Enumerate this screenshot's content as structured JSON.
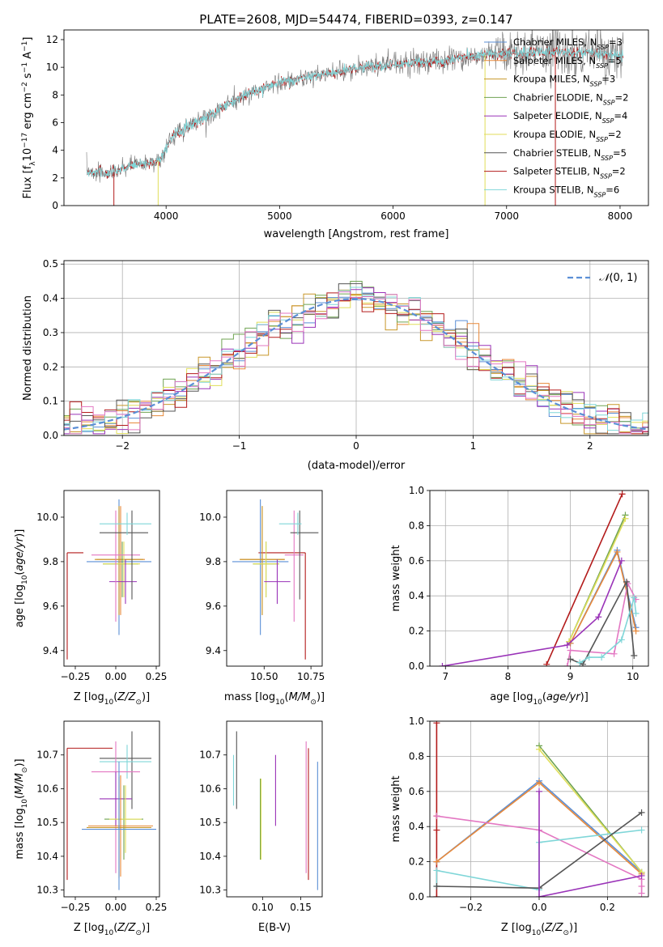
{
  "title": "PLATE=2608, MJD=54474, FIBERID=0393, z=0.147",
  "colors": {
    "chabrier_miles": "#5b8fd6",
    "salpeter_miles": "#e8893a",
    "kroupa_miles": "#c8972a",
    "chabrier_elodie": "#6fa352",
    "salpeter_elodie": "#9a33b8",
    "kroupa_elodie": "#e0de5a",
    "chabrier_stelib": "#555555",
    "salpeter_stelib": "#b31b1b",
    "kroupa_stelib": "#7fd6d8",
    "pink": "#e377c2",
    "normal": "#5b8fd6"
  },
  "chart_data": [
    {
      "id": "spectrum",
      "type": "line",
      "xlabel": "wavelength [Angstrom, rest frame]",
      "ylabel": "Flux [f_λ 10^-17 erg cm^-2 s^-1 A^-1]",
      "xlim": [
        3100,
        8250
      ],
      "ylim": [
        0,
        12.7
      ],
      "xticks": [
        4000,
        5000,
        6000,
        7000,
        8000
      ],
      "yticks": [
        0,
        2,
        4,
        6,
        8,
        10,
        12
      ],
      "legend_position": "top-right",
      "series": [
        {
          "name": "Chabrier MILES, N_SSP=3",
          "key": "chabrier_miles"
        },
        {
          "name": "Salpeter MILES, N_SSP=5",
          "key": "salpeter_miles"
        },
        {
          "name": "Kroupa MILES, N_SSP=3",
          "key": "kroupa_miles"
        },
        {
          "name": "Chabrier ELODIE, N_SSP=2",
          "key": "chabrier_elodie"
        },
        {
          "name": "Salpeter ELODIE, N_SSP=4",
          "key": "salpeter_elodie"
        },
        {
          "name": "Kroupa ELODIE, N_SSP=2",
          "key": "kroupa_elodie"
        },
        {
          "name": "Chabrier STELIB, N_SSP=5",
          "key": "chabrier_stelib"
        },
        {
          "name": "Salpeter STELIB, N_SSP=2",
          "key": "salpeter_stelib"
        },
        {
          "name": "Kroupa STELIB, N_SSP=6",
          "key": "kroupa_stelib"
        }
      ],
      "continuum": [
        [
          3300,
          2.5
        ],
        [
          3500,
          2.3
        ],
        [
          3700,
          2.9
        ],
        [
          3850,
          3.1
        ],
        [
          3950,
          3.3
        ],
        [
          4050,
          5.0
        ],
        [
          4200,
          5.8
        ],
        [
          4400,
          6.6
        ],
        [
          4600,
          7.6
        ],
        [
          4800,
          8.3
        ],
        [
          5000,
          8.9
        ],
        [
          5200,
          9.2
        ],
        [
          5400,
          9.5
        ],
        [
          5600,
          9.8
        ],
        [
          5800,
          10.1
        ],
        [
          6000,
          10.2
        ],
        [
          6200,
          10.3
        ],
        [
          6400,
          10.4
        ],
        [
          6600,
          10.7
        ],
        [
          6800,
          10.9
        ],
        [
          7000,
          11.0
        ],
        [
          7200,
          11.0
        ],
        [
          7400,
          11.1
        ],
        [
          7600,
          11.1
        ],
        [
          7800,
          11.0
        ],
        [
          8000,
          10.8
        ]
      ]
    },
    {
      "id": "residuals",
      "type": "bar",
      "xlabel": "(data-model)/error",
      "ylabel": "Normed distribution",
      "xlim": [
        -2.5,
        2.5
      ],
      "ylim": [
        0,
        0.51
      ],
      "xticks": [
        -2,
        -1,
        0,
        1,
        2
      ],
      "yticks": [
        0.0,
        0.1,
        0.2,
        0.3,
        0.4,
        0.5
      ],
      "legend_position": "top-right",
      "legend_label": "N(0,1)",
      "bin_width": 0.1,
      "grid": true
    },
    {
      "id": "age_vs_Z",
      "type": "scatter",
      "xlabel": "Z [log10(Z/Z⊙)]",
      "ylabel": "age [log10(age/yr)]",
      "xlim": [
        -0.32,
        0.27
      ],
      "ylim": [
        9.33,
        10.12
      ],
      "xticks": [
        -0.25,
        0.0,
        0.25
      ],
      "xticklabels": [
        "−0.25",
        "0.00",
        "0.25"
      ],
      "yticks": [
        9.4,
        9.6,
        9.8,
        10.0
      ],
      "points": [
        {
          "key": "salpeter_stelib",
          "x": -0.3,
          "y": 9.84,
          "xerr": [
            0.0,
            0.1
          ],
          "yerr": [
            0.48,
            0.0
          ]
        },
        {
          "key": "chabrier_miles",
          "x": 0.02,
          "y": 9.8,
          "xerr": [
            0.2,
            0.2
          ],
          "yerr": [
            0.33,
            0.28
          ]
        },
        {
          "key": "salpeter_miles",
          "x": 0.03,
          "y": 9.81,
          "xerr": [
            0.15,
            0.15
          ],
          "yerr": [
            0.25,
            0.24
          ]
        },
        {
          "key": "kroupa_miles",
          "x": 0.02,
          "y": 9.81,
          "xerr": [
            0.15,
            0.15
          ],
          "yerr": [
            0.25,
            0.24
          ]
        },
        {
          "key": "chabrier_elodie",
          "x": 0.04,
          "y": 9.79,
          "xerr": [
            0.12,
            0.1
          ],
          "yerr": [
            0.15,
            0.1
          ]
        },
        {
          "key": "kroupa_elodie",
          "x": 0.05,
          "y": 9.79,
          "xerr": [
            0.13,
            0.1
          ],
          "yerr": [
            0.15,
            0.1
          ]
        },
        {
          "key": "salpeter_elodie",
          "x": 0.06,
          "y": 9.71,
          "xerr": [
            0.1,
            0.07
          ],
          "yerr": [
            0.1,
            0.1
          ]
        },
        {
          "key": "pink",
          "x": 0.0,
          "y": 9.83,
          "xerr": [
            0.15,
            0.15
          ],
          "yerr": [
            0.3,
            0.2
          ]
        },
        {
          "key": "chabrier_stelib",
          "x": 0.1,
          "y": 9.93,
          "xerr": [
            0.2,
            0.1
          ],
          "yerr": [
            0.3,
            0.1
          ]
        },
        {
          "key": "kroupa_stelib",
          "x": 0.07,
          "y": 9.97,
          "xerr": [
            0.17,
            0.15
          ],
          "yerr": [
            0.05,
            0.05
          ]
        }
      ]
    },
    {
      "id": "age_vs_mass",
      "type": "scatter",
      "xlabel": "mass [log10(M/M⊙)]",
      "xlim": [
        10.3,
        10.81
      ],
      "ylim": [
        9.33,
        10.12
      ],
      "xticks": [
        10.5,
        10.75
      ],
      "xticklabels": [
        "10.50",
        "10.75"
      ],
      "yticks": [
        9.4,
        9.6,
        9.8,
        10.0
      ],
      "points": [
        {
          "key": "salpeter_stelib",
          "x": 10.72,
          "y": 9.84,
          "xerr": [
            0.25,
            0.0
          ],
          "yerr": [
            0.48,
            0.0
          ]
        },
        {
          "key": "chabrier_miles",
          "x": 10.48,
          "y": 9.8,
          "xerr": [
            0.15,
            0.15
          ],
          "yerr": [
            0.33,
            0.28
          ]
        },
        {
          "key": "salpeter_miles",
          "x": 10.49,
          "y": 9.81,
          "xerr": [
            0.12,
            0.12
          ],
          "yerr": [
            0.25,
            0.24
          ]
        },
        {
          "key": "kroupa_miles",
          "x": 10.49,
          "y": 9.81,
          "xerr": [
            0.12,
            0.12
          ],
          "yerr": [
            0.25,
            0.24
          ]
        },
        {
          "key": "chabrier_elodie",
          "x": 10.51,
          "y": 9.79,
          "xerr": [
            0.07,
            0.07
          ],
          "yerr": [
            0.15,
            0.1
          ]
        },
        {
          "key": "kroupa_elodie",
          "x": 10.51,
          "y": 9.79,
          "xerr": [
            0.07,
            0.07
          ],
          "yerr": [
            0.15,
            0.1
          ]
        },
        {
          "key": "salpeter_elodie",
          "x": 10.57,
          "y": 9.71,
          "xerr": [
            0.07,
            0.07
          ],
          "yerr": [
            0.1,
            0.1
          ]
        },
        {
          "key": "pink",
          "x": 10.66,
          "y": 9.83,
          "xerr": [
            0.05,
            0.05
          ],
          "yerr": [
            0.3,
            0.2
          ]
        },
        {
          "key": "chabrier_stelib",
          "x": 10.69,
          "y": 9.93,
          "xerr": [
            0.05,
            0.1
          ],
          "yerr": [
            0.3,
            0.1
          ]
        },
        {
          "key": "kroupa_stelib",
          "x": 10.68,
          "y": 9.97,
          "xerr": [
            0.1,
            0.02
          ],
          "yerr": [
            0.05,
            0.05
          ]
        }
      ]
    },
    {
      "id": "weight_vs_age",
      "type": "line",
      "xlabel": "age [log10(age/yr)]",
      "ylabel": "mass weight",
      "xlim": [
        6.75,
        10.25
      ],
      "ylim": [
        0,
        1.0
      ],
      "xticks": [
        7,
        8,
        9,
        10
      ],
      "yticks": [
        0.0,
        0.2,
        0.4,
        0.6,
        0.8,
        1.0
      ],
      "grid": true,
      "series": [
        {
          "key": "salpeter_stelib",
          "x": [
            8.62,
            9.83
          ],
          "y": [
            0.01,
            0.98
          ]
        },
        {
          "key": "chabrier_elodie",
          "x": [
            8.98,
            9.88
          ],
          "y": [
            0.14,
            0.86
          ]
        },
        {
          "key": "kroupa_elodie",
          "x": [
            8.98,
            9.88
          ],
          "y": [
            0.14,
            0.84
          ]
        },
        {
          "key": "chabrier_miles",
          "x": [
            9.0,
            9.75,
            10.05
          ],
          "y": [
            0.13,
            0.66,
            0.22
          ]
        },
        {
          "key": "salpeter_miles",
          "x": [
            9.0,
            9.75,
            10.05
          ],
          "y": [
            0.13,
            0.65,
            0.2
          ]
        },
        {
          "key": "salpeter_elodie",
          "x": [
            6.95,
            8.95,
            9.45,
            9.82
          ],
          "y": [
            0.0,
            0.12,
            0.28,
            0.6
          ]
        },
        {
          "key": "pink",
          "x": [
            8.95,
            9.0,
            9.7,
            9.92,
            10.05
          ],
          "y": [
            0.0,
            0.09,
            0.07,
            0.47,
            0.38
          ]
        },
        {
          "key": "chabrier_stelib",
          "x": [
            9.0,
            9.2,
            9.9,
            10.02
          ],
          "y": [
            0.04,
            0.01,
            0.48,
            0.06
          ]
        },
        {
          "key": "kroupa_stelib",
          "x": [
            9.15,
            9.3,
            9.5,
            9.82,
            10.02,
            10.05
          ],
          "y": [
            0.02,
            0.05,
            0.05,
            0.15,
            0.39,
            0.3
          ]
        }
      ]
    },
    {
      "id": "mass_vs_Z",
      "type": "scatter",
      "xlabel": "Z [log10(Z/Z⊙)]",
      "ylabel": "mass [log10(M/M⊙)]",
      "xlim": [
        -0.32,
        0.27
      ],
      "ylim": [
        10.28,
        10.8
      ],
      "xticks": [
        -0.25,
        0.0,
        0.25
      ],
      "xticklabels": [
        "−0.25",
        "0.00",
        "0.25"
      ],
      "yticks": [
        10.3,
        10.4,
        10.5,
        10.6,
        10.7
      ],
      "points": [
        {
          "key": "salpeter_stelib",
          "x": -0.3,
          "y": 10.72,
          "xerr": [
            0.0,
            0.28
          ],
          "yerr": [
            0.39,
            0.0
          ]
        },
        {
          "key": "chabrier_stelib",
          "x": 0.1,
          "y": 10.69,
          "xerr": [
            0.2,
            0.12
          ],
          "yerr": [
            0.15,
            0.08
          ]
        },
        {
          "key": "kroupa_stelib",
          "x": 0.07,
          "y": 10.68,
          "xerr": [
            0.17,
            0.15
          ],
          "yerr": [
            0.05,
            0.05
          ]
        },
        {
          "key": "pink",
          "x": 0.0,
          "y": 10.65,
          "xerr": [
            0.15,
            0.15
          ],
          "yerr": [
            0.3,
            0.09
          ]
        },
        {
          "key": "salpeter_elodie",
          "x": 0.0,
          "y": 10.57,
          "xerr": [
            0.1,
            0.1
          ],
          "yerr": [
            0.08,
            0.08
          ]
        },
        {
          "key": "chabrier_elodie",
          "x": 0.05,
          "y": 10.51,
          "xerr": [
            0.12,
            0.12
          ],
          "yerr": [
            0.12,
            0.1
          ]
        },
        {
          "key": "kroupa_elodie",
          "x": 0.06,
          "y": 10.51,
          "xerr": [
            0.1,
            0.1
          ],
          "yerr": [
            0.1,
            0.1
          ]
        },
        {
          "key": "salpeter_miles",
          "x": 0.03,
          "y": 10.49,
          "xerr": [
            0.2,
            0.2
          ],
          "yerr": [
            0.15,
            0.15
          ]
        },
        {
          "key": "kroupa_miles",
          "x": 0.02,
          "y": 10.485,
          "xerr": [
            0.2,
            0.2
          ],
          "yerr": [
            0.15,
            0.15
          ]
        },
        {
          "key": "chabrier_miles",
          "x": 0.02,
          "y": 10.48,
          "xerr": [
            0.23,
            0.23
          ],
          "yerr": [
            0.18,
            0.2
          ]
        }
      ]
    },
    {
      "id": "mass_vs_ebv",
      "type": "scatter",
      "xlabel": "E(B-V)",
      "xlim": [
        0.053,
        0.178
      ],
      "ylim": [
        10.28,
        10.8
      ],
      "xticks": [
        0.1,
        0.15
      ],
      "xticklabels": [
        "0.10",
        "0.15"
      ],
      "yticks": [
        10.3,
        10.4,
        10.5,
        10.6,
        10.7
      ],
      "points": [
        {
          "key": "chabrier_stelib",
          "x": 0.066,
          "y": 10.69,
          "yerr": [
            0.15,
            0.08
          ]
        },
        {
          "key": "kroupa_stelib",
          "x": 0.062,
          "y": 10.65,
          "yerr": [
            0.1,
            0.05
          ]
        },
        {
          "key": "chabrier_elodie",
          "x": 0.097,
          "y": 10.51,
          "yerr": [
            0.12,
            0.12
          ]
        },
        {
          "key": "kroupa_elodie",
          "x": 0.098,
          "y": 10.51,
          "yerr": [
            0.12,
            0.12
          ]
        },
        {
          "key": "salpeter_elodie",
          "x": 0.117,
          "y": 10.6,
          "yerr": [
            0.11,
            0.1
          ]
        },
        {
          "key": "pink",
          "x": 0.157,
          "y": 10.65,
          "yerr": [
            0.3,
            0.09
          ]
        },
        {
          "key": "salpeter_stelib",
          "x": 0.16,
          "y": 10.72,
          "yerr": [
            0.39,
            0.0
          ]
        },
        {
          "key": "chabrier_miles",
          "x": 0.172,
          "y": 10.48,
          "yerr": [
            0.18,
            0.2
          ]
        }
      ]
    },
    {
      "id": "weight_vs_Z",
      "type": "line",
      "xlabel": "Z [log10(Z/Z⊙)]",
      "ylabel": "mass weight",
      "xlim": [
        -0.32,
        0.32
      ],
      "ylim": [
        0,
        1.0
      ],
      "xticks": [
        -0.2,
        0.0,
        0.2
      ],
      "xticklabels": [
        "−0.2",
        "0.0",
        "0.2"
      ],
      "yticks": [
        0.0,
        0.2,
        0.4,
        0.6,
        0.8,
        1.0
      ],
      "grid": true,
      "series": [
        {
          "key": "salpeter_stelib",
          "x": [
            -0.3,
            -0.3,
            -0.3,
            -0.3,
            -0.3
          ],
          "y": [
            0.0,
            0.2,
            0.38,
            0.46,
            0.99
          ]
        },
        {
          "key": "chabrier_miles",
          "x": [
            -0.3,
            0.0,
            0.3
          ],
          "y": [
            0.2,
            0.66,
            0.14
          ]
        },
        {
          "key": "salpeter_miles",
          "x": [
            -0.3,
            0.0,
            0.3
          ],
          "y": [
            0.2,
            0.65,
            0.13
          ]
        },
        {
          "key": "chabrier_elodie",
          "x": [
            0.0,
            0.3
          ],
          "y": [
            0.86,
            0.14
          ]
        },
        {
          "key": "kroupa_elodie",
          "x": [
            0.0,
            0.3
          ],
          "y": [
            0.84,
            0.14
          ]
        },
        {
          "key": "pink",
          "x": [
            -0.3,
            0.0,
            0.3,
            0.3,
            0.3
          ],
          "y": [
            0.46,
            0.38,
            0.1,
            0.06,
            0.02
          ]
        },
        {
          "key": "kroupa_stelib",
          "x": [
            -0.3,
            -0.3,
            0.0,
            0.0,
            0.3
          ],
          "y": [
            0.06,
            0.15,
            0.04,
            0.31,
            0.38
          ]
        },
        {
          "key": "chabrier_stelib",
          "x": [
            -0.3,
            0.0,
            0.3
          ],
          "y": [
            0.06,
            0.05,
            0.48
          ]
        },
        {
          "key": "salpeter_elodie",
          "x": [
            0.0,
            0.0,
            0.3
          ],
          "y": [
            0.6,
            0.0,
            0.12
          ]
        }
      ]
    }
  ]
}
